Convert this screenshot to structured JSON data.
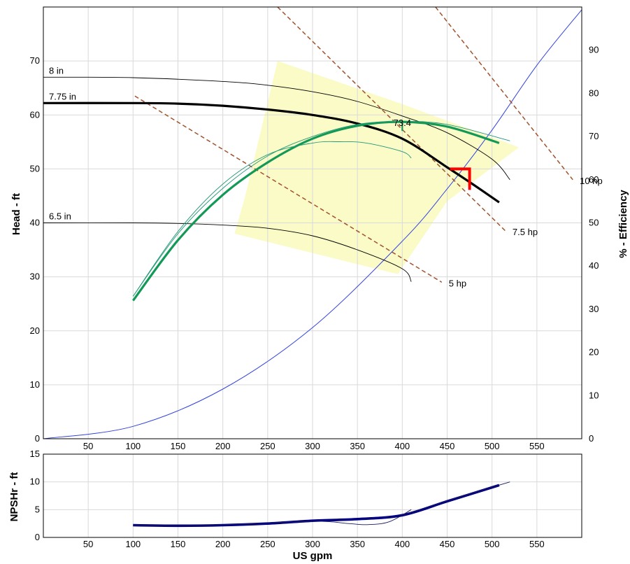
{
  "chart_data": {
    "type": "line",
    "x_axis": {
      "label": "US gpm",
      "range": [
        0,
        600
      ],
      "ticks": [
        50,
        100,
        150,
        200,
        250,
        300,
        350,
        400,
        450,
        500,
        550
      ],
      "tick_labels": [
        "50",
        "100",
        "150",
        "200",
        "250",
        "300",
        "350",
        "400",
        "450",
        "500",
        "550"
      ]
    },
    "main_y_axis": {
      "label": "Head - ft",
      "range": [
        0,
        80
      ],
      "ticks": [
        0,
        10,
        20,
        30,
        40,
        50,
        60,
        70
      ],
      "tick_labels": [
        "0",
        "10",
        "20",
        "30",
        "40",
        "50",
        "60",
        "70"
      ]
    },
    "efficiency_axis": {
      "label": "% - Efficiency",
      "range": [
        0,
        100
      ],
      "ticks": [
        0,
        10,
        20,
        30,
        40,
        50,
        60,
        70,
        80,
        90
      ],
      "tick_labels": [
        "0",
        "10",
        "20",
        "30",
        "40",
        "50",
        "60",
        "70",
        "80",
        "90"
      ]
    },
    "npsh_axis": {
      "label": "NPSHr - ft",
      "range": [
        0,
        15
      ],
      "ticks": [
        0,
        5,
        10,
        15
      ],
      "tick_labels": [
        "0",
        "5",
        "10",
        "15"
      ]
    },
    "grid": true,
    "preferred_region": {
      "color": "#fbfbc8",
      "points": [
        [
          261,
          70
        ],
        [
          400,
          62
        ],
        [
          530,
          54
        ],
        [
          450,
          44
        ],
        [
          395,
          30.5
        ],
        [
          213,
          38
        ],
        [
          225,
          45
        ]
      ]
    },
    "head_curves": [
      {
        "label": "8 in",
        "style": "thin",
        "points": [
          [
            0,
            67
          ],
          [
            100,
            66.9
          ],
          [
            200,
            66.2
          ],
          [
            250,
            65.5
          ],
          [
            300,
            64.3
          ],
          [
            350,
            62.5
          ],
          [
            400,
            59.8
          ],
          [
            450,
            56.7
          ],
          [
            500,
            51.8
          ],
          [
            520,
            48
          ]
        ]
      },
      {
        "label": "7.75 in",
        "style": "selected",
        "points": [
          [
            0,
            62.2
          ],
          [
            100,
            62.2
          ],
          [
            150,
            62.1
          ],
          [
            200,
            61.7
          ],
          [
            250,
            61
          ],
          [
            300,
            60
          ],
          [
            350,
            58.4
          ],
          [
            400,
            55.6
          ],
          [
            450,
            50.3
          ],
          [
            480,
            47
          ],
          [
            508,
            43.8
          ]
        ]
      },
      {
        "label": "6.5 in",
        "style": "thin",
        "points": [
          [
            0,
            40
          ],
          [
            100,
            40
          ],
          [
            150,
            39.9
          ],
          [
            200,
            39.6
          ],
          [
            250,
            39
          ],
          [
            300,
            37.6
          ],
          [
            350,
            35
          ],
          [
            400,
            31.5
          ],
          [
            410,
            29.1
          ]
        ]
      }
    ],
    "power_lines": [
      {
        "label": "5 hp",
        "points": [
          [
            102,
            63.5
          ],
          [
            444,
            29
          ]
        ]
      },
      {
        "label": "7.5 hp",
        "points": [
          [
            261,
            80
          ],
          [
            515,
            38.5
          ]
        ]
      },
      {
        "label": "10 hp",
        "points": [
          [
            437,
            80
          ],
          [
            590,
            48
          ]
        ]
      }
    ],
    "system_curve": {
      "color": "#3344dd",
      "points": [
        [
          0,
          0
        ],
        [
          100,
          2.3
        ],
        [
          200,
          9.2
        ],
        [
          300,
          20.6
        ],
        [
          400,
          36.6
        ],
        [
          450,
          46.3
        ],
        [
          500,
          57.2
        ],
        [
          550,
          69.2
        ],
        [
          600,
          79.5
        ]
      ]
    },
    "efficiency_curves": [
      {
        "name": "7.75 in",
        "style": "selected",
        "points": [
          [
            100,
            32
          ],
          [
            150,
            46
          ],
          [
            200,
            56.5
          ],
          [
            250,
            64
          ],
          [
            300,
            69.5
          ],
          [
            350,
            72.5
          ],
          [
            400,
            73.4
          ],
          [
            450,
            72.3
          ],
          [
            508,
            68.5
          ]
        ]
      },
      {
        "name": "8 in",
        "style": "thin",
        "points": [
          [
            100,
            33
          ],
          [
            150,
            47.5
          ],
          [
            200,
            58
          ],
          [
            250,
            65.5
          ],
          [
            300,
            70
          ],
          [
            350,
            72.8
          ],
          [
            400,
            73.5
          ],
          [
            450,
            72.8
          ],
          [
            520,
            69
          ]
        ]
      },
      {
        "name": "6.5 in",
        "style": "thin",
        "points": [
          [
            100,
            33
          ],
          [
            150,
            48
          ],
          [
            200,
            59
          ],
          [
            250,
            65.8
          ],
          [
            300,
            68.5
          ],
          [
            330,
            68.8
          ],
          [
            360,
            68.5
          ],
          [
            400,
            66.5
          ],
          [
            410,
            65
          ]
        ]
      }
    ],
    "bep": {
      "label": "73.4",
      "flow": 400,
      "efficiency": 73.4,
      "head": 55.5
    },
    "duty_point": {
      "flow": 475,
      "head": 50,
      "color": "#ff0000"
    },
    "npsh_curves": [
      {
        "style": "selected",
        "points": [
          [
            100,
            2.2
          ],
          [
            150,
            2.1
          ],
          [
            200,
            2.2
          ],
          [
            250,
            2.5
          ],
          [
            300,
            3
          ],
          [
            350,
            3.3
          ],
          [
            400,
            4
          ],
          [
            450,
            6.5
          ],
          [
            508,
            9.4
          ]
        ]
      },
      {
        "style": "thin",
        "points": [
          [
            100,
            2.2
          ],
          [
            200,
            2.3
          ],
          [
            300,
            2.9
          ],
          [
            340,
            2.5
          ],
          [
            360,
            2.3
          ],
          [
            385,
            2.8
          ],
          [
            410,
            5
          ]
        ]
      },
      {
        "style": "thin",
        "points": [
          [
            400,
            4
          ],
          [
            450,
            6.6
          ],
          [
            520,
            10
          ]
        ]
      }
    ]
  }
}
